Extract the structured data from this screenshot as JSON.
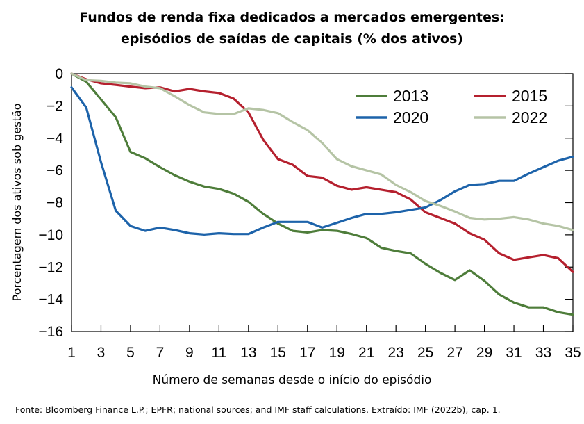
{
  "title_line1": "Fundos de renda fixa dedicados a mercados emergentes:",
  "title_line2": "episódios de saídas de capitais (% dos ativos)",
  "source": "Fonte: Bloomberg Finance L.P.; EPFR; national sources; and IMF staff calculations. Extraído: IMF (2022b), cap. 1.",
  "chart_data": {
    "type": "line",
    "xlabel": "Número de semanas desde o início do episódio",
    "ylabel": "Porcentagem dos ativos sob gestão",
    "xlim": [
      1,
      35
    ],
    "ylim": [
      -16,
      0
    ],
    "x_ticks": [
      1,
      3,
      5,
      7,
      9,
      11,
      13,
      15,
      17,
      19,
      21,
      23,
      25,
      27,
      29,
      31,
      33,
      35
    ],
    "y_ticks": [
      0,
      -2,
      -4,
      -6,
      -8,
      -10,
      -12,
      -14,
      -16
    ],
    "y_tick_labels": [
      "0",
      "−2",
      "−4",
      "−6",
      "−8",
      "−10",
      "−12",
      "−14",
      "−16"
    ],
    "grid": false,
    "legend_position": "top-right",
    "x": [
      1,
      2,
      3,
      4,
      5,
      6,
      7,
      8,
      9,
      10,
      11,
      12,
      13,
      14,
      15,
      16,
      17,
      18,
      19,
      20,
      21,
      22,
      23,
      24,
      25,
      26,
      27,
      28,
      29,
      30,
      31,
      32,
      33,
      34,
      35
    ],
    "series": [
      {
        "name": "2013",
        "color": "#4e7d3a",
        "values": [
          0,
          -0.5,
          -1.6,
          -2.7,
          -4.85,
          -5.25,
          -5.8,
          -6.3,
          -6.7,
          -7.0,
          -7.15,
          -7.45,
          -7.95,
          -8.7,
          -9.3,
          -9.75,
          -9.85,
          -9.7,
          -9.75,
          -9.95,
          -10.2,
          -10.8,
          -11.0,
          -11.15,
          -11.8,
          -12.35,
          -12.8,
          -12.2,
          -12.85,
          -13.7,
          -14.2,
          -14.5,
          -14.5,
          -14.8,
          -14.95
        ]
      },
      {
        "name": "2015",
        "color": "#b5202e",
        "values": [
          0,
          -0.35,
          -0.6,
          -0.7,
          -0.8,
          -0.9,
          -0.85,
          -1.1,
          -0.95,
          -1.1,
          -1.2,
          -1.55,
          -2.4,
          -4.1,
          -5.3,
          -5.65,
          -6.35,
          -6.45,
          -6.95,
          -7.2,
          -7.05,
          -7.2,
          -7.35,
          -7.8,
          -8.6,
          -8.95,
          -9.3,
          -9.9,
          -10.3,
          -11.15,
          -11.55,
          -11.4,
          -11.25,
          -11.45,
          -12.3
        ]
      },
      {
        "name": "2020",
        "color": "#1d63aa",
        "values": [
          -0.85,
          -2.1,
          -5.5,
          -8.5,
          -9.45,
          -9.75,
          -9.55,
          -9.7,
          -9.9,
          -9.98,
          -9.9,
          -9.95,
          -9.95,
          -9.55,
          -9.2,
          -9.2,
          -9.2,
          -9.55,
          -9.25,
          -8.95,
          -8.7,
          -8.7,
          -8.6,
          -8.45,
          -8.3,
          -7.85,
          -7.3,
          -6.9,
          -6.85,
          -6.65,
          -6.65,
          -6.2,
          -5.8,
          -5.4,
          -5.15
        ]
      },
      {
        "name": "2022",
        "color": "#b5c4a5",
        "values": [
          0,
          -0.4,
          -0.45,
          -0.55,
          -0.6,
          -0.8,
          -0.9,
          -1.4,
          -1.95,
          -2.4,
          -2.5,
          -2.5,
          -2.15,
          -2.25,
          -2.45,
          -3.0,
          -3.5,
          -4.3,
          -5.3,
          -5.75,
          -6.0,
          -6.25,
          -6.9,
          -7.35,
          -7.9,
          -8.2,
          -8.55,
          -8.95,
          -9.05,
          -9.0,
          -8.9,
          -9.05,
          -9.3,
          -9.45,
          -9.7
        ]
      }
    ]
  }
}
